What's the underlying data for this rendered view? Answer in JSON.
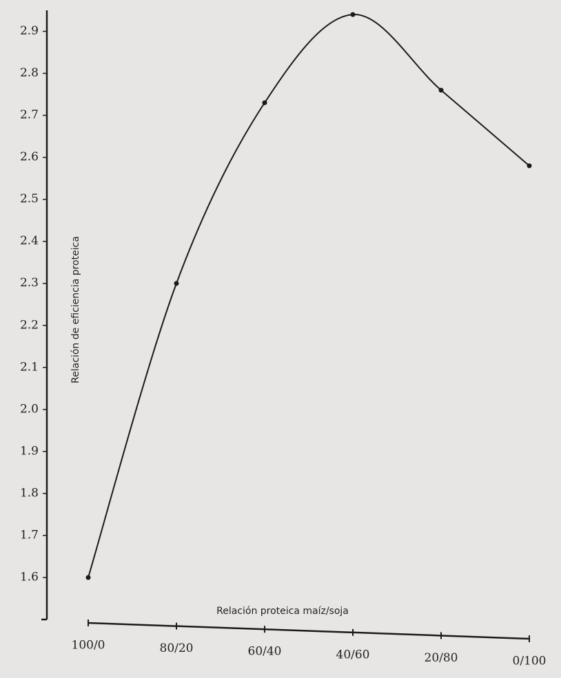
{
  "chart_data": {
    "type": "line",
    "x_label": "Relación proteica maíz/soja",
    "y_label": "Relación de eficiencia proteica",
    "categories": [
      "100/0",
      "80/20",
      "60/40",
      "40/60",
      "20/80",
      "0/100"
    ],
    "values": [
      1.6,
      2.3,
      2.73,
      2.94,
      2.76,
      2.58
    ],
    "color": "#1a1a1a",
    "ylim": [
      1.5,
      2.95
    ],
    "yticks": [
      1.6,
      1.7,
      1.8,
      1.9,
      {
        "value": 2,
        "label": "2.0"
      },
      2.1,
      2.2,
      2.3,
      2.4,
      2.5,
      2.6,
      2.7,
      2.8,
      2.9
    ]
  }
}
